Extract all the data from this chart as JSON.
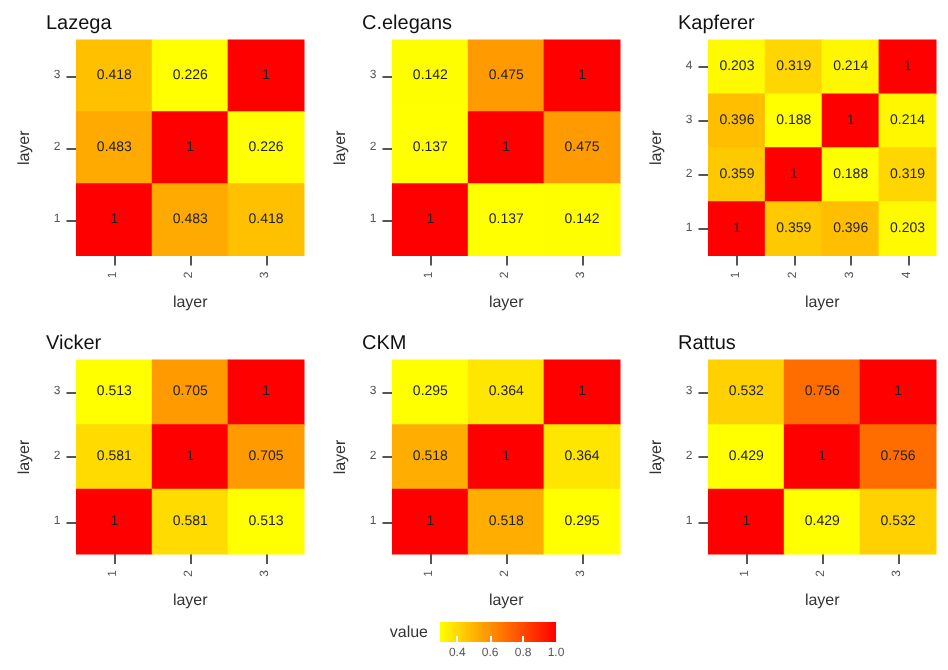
{
  "chart_data": [
    {
      "type": "heatmap",
      "title": "Lazega",
      "xlabel": "layer",
      "ylabel": "layer",
      "categories": [
        "1",
        "2",
        "3"
      ],
      "y_categories": [
        "3",
        "2",
        "1"
      ],
      "cells": [
        [
          0.418,
          0.226,
          1
        ],
        [
          0.483,
          1,
          0.226
        ],
        [
          1,
          0.483,
          0.418
        ]
      ],
      "data_labels": true,
      "grid": false
    },
    {
      "type": "heatmap",
      "title": "C.elegans",
      "xlabel": "layer",
      "ylabel": "layer",
      "categories": [
        "1",
        "2",
        "3"
      ],
      "y_categories": [
        "3",
        "2",
        "1"
      ],
      "cells": [
        [
          0.142,
          0.475,
          1
        ],
        [
          0.137,
          1,
          0.475
        ],
        [
          1,
          0.137,
          0.142
        ]
      ],
      "data_labels": true,
      "grid": false
    },
    {
      "type": "heatmap",
      "title": "Kapferer",
      "xlabel": "layer",
      "ylabel": "layer",
      "categories": [
        "1",
        "2",
        "3",
        "4"
      ],
      "y_categories": [
        "4",
        "3",
        "2",
        "1"
      ],
      "cells": [
        [
          0.203,
          0.319,
          0.214,
          1
        ],
        [
          0.396,
          0.188,
          1,
          0.214
        ],
        [
          0.359,
          1,
          0.188,
          0.319
        ],
        [
          1,
          0.359,
          0.396,
          0.203
        ]
      ],
      "data_labels": true,
      "grid": false
    },
    {
      "type": "heatmap",
      "title": "Vicker",
      "xlabel": "layer",
      "ylabel": "layer",
      "categories": [
        "1",
        "2",
        "3"
      ],
      "y_categories": [
        "3",
        "2",
        "1"
      ],
      "cells": [
        [
          0.513,
          0.705,
          1
        ],
        [
          0.581,
          1,
          0.705
        ],
        [
          1,
          0.581,
          0.513
        ]
      ],
      "data_labels": true,
      "grid": false
    },
    {
      "type": "heatmap",
      "title": "CKM",
      "xlabel": "layer",
      "ylabel": "layer",
      "categories": [
        "1",
        "2",
        "3"
      ],
      "y_categories": [
        "3",
        "2",
        "1"
      ],
      "cells": [
        [
          0.295,
          0.364,
          1
        ],
        [
          0.518,
          1,
          0.364
        ],
        [
          1,
          0.518,
          0.295
        ]
      ],
      "clim": [
        0.295,
        1
      ],
      "cticks": [
        0.4,
        0.6,
        0.8,
        {
          "value": 1,
          "label": "1.0"
        }
      ],
      "clabel": "value",
      "data_labels": true,
      "grid": false
    },
    {
      "type": "heatmap",
      "title": "Rattus",
      "xlabel": "layer",
      "ylabel": "layer",
      "categories": [
        "1",
        "2",
        "3"
      ],
      "y_categories": [
        "3",
        "2",
        "1"
      ],
      "cells": [
        [
          0.532,
          0.756,
          1
        ],
        [
          0.429,
          1,
          0.756
        ],
        [
          1,
          0.429,
          0.532
        ]
      ],
      "data_labels": true,
      "grid": false
    }
  ]
}
